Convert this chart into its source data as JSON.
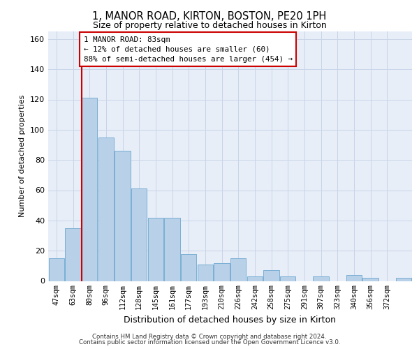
{
  "title": "1, MANOR ROAD, KIRTON, BOSTON, PE20 1PH",
  "subtitle": "Size of property relative to detached houses in Kirton",
  "xlabel": "Distribution of detached houses by size in Kirton",
  "ylabel": "Number of detached properties",
  "bar_values": [
    15,
    35,
    121,
    95,
    86,
    61,
    42,
    42,
    18,
    11,
    12,
    15,
    3,
    7,
    3,
    0,
    3,
    0,
    4,
    2,
    0,
    2
  ],
  "bin_labels": [
    "47sqm",
    "63sqm",
    "80sqm",
    "96sqm",
    "112sqm",
    "128sqm",
    "145sqm",
    "161sqm",
    "177sqm",
    "193sqm",
    "210sqm",
    "226sqm",
    "242sqm",
    "258sqm",
    "275sqm",
    "291sqm",
    "307sqm",
    "323sqm",
    "340sqm",
    "356sqm",
    "372sqm"
  ],
  "bar_color": "#b8d0e8",
  "bar_edge_color": "#7aafd4",
  "vline_x_index": 2,
  "vline_color": "#cc0000",
  "annotation_text": "1 MANOR ROAD: 83sqm\n← 12% of detached houses are smaller (60)\n88% of semi-detached houses are larger (454) →",
  "annotation_box_color": "#ffffff",
  "annotation_box_edge": "#cc0000",
  "ylim": [
    0,
    165
  ],
  "yticks": [
    0,
    20,
    40,
    60,
    80,
    100,
    120,
    140,
    160
  ],
  "background_color": "#e8eef8",
  "footer_line1": "Contains HM Land Registry data © Crown copyright and database right 2024.",
  "footer_line2": "Contains public sector information licensed under the Open Government Licence v3.0."
}
